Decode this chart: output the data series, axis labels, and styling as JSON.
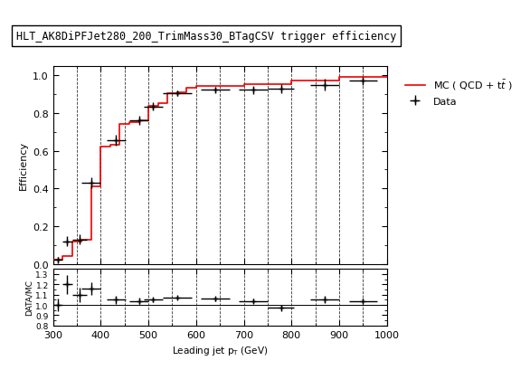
{
  "title": "HLT_AK8DiPFJet280_200_TrimMass30_BTagCSV trigger efficiency",
  "xlabel": "Leading jet p   (GeV)",
  "ylabel_main": "Efficiency",
  "ylabel_ratio": "DATA/MC",
  "xlim": [
    300,
    1000
  ],
  "ylim_main": [
    0,
    1.05
  ],
  "ylim_ratio": [
    0.8,
    1.35
  ],
  "mc_step_x": [
    300,
    320,
    340,
    360,
    380,
    400,
    420,
    440,
    460,
    480,
    500,
    520,
    540,
    560,
    580,
    600,
    650,
    700,
    750,
    800,
    850,
    900,
    950,
    1000
  ],
  "mc_step_y": [
    0.02,
    0.04,
    0.12,
    0.13,
    0.41,
    0.62,
    0.63,
    0.74,
    0.75,
    0.76,
    0.84,
    0.85,
    0.905,
    0.91,
    0.935,
    0.945,
    0.945,
    0.953,
    0.953,
    0.97,
    0.97,
    0.99,
    0.99
  ],
  "data_x": [
    310,
    330,
    355,
    380,
    432,
    480,
    510,
    560,
    640,
    720,
    778,
    870,
    950
  ],
  "data_y": [
    0.02,
    0.12,
    0.13,
    0.43,
    0.655,
    0.76,
    0.835,
    0.905,
    0.922,
    0.922,
    0.93,
    0.95,
    0.97
  ],
  "data_xerr": [
    10,
    10,
    15,
    20,
    20,
    20,
    20,
    30,
    30,
    30,
    28,
    30,
    30
  ],
  "data_yerr": [
    0.015,
    0.025,
    0.025,
    0.03,
    0.03,
    0.025,
    0.02,
    0.015,
    0.015,
    0.02,
    0.025,
    0.03,
    0.02
  ],
  "ratio_x": [
    310,
    330,
    355,
    380,
    432,
    480,
    510,
    560,
    640,
    720,
    778,
    870,
    950
  ],
  "ratio_y": [
    1.0,
    1.2,
    1.1,
    1.16,
    1.05,
    1.04,
    1.05,
    1.07,
    1.06,
    1.04,
    0.97,
    1.05,
    1.04
  ],
  "ratio_xerr": [
    10,
    10,
    15,
    20,
    20,
    20,
    20,
    30,
    30,
    30,
    28,
    30,
    30
  ],
  "ratio_yerr": [
    0.06,
    0.09,
    0.07,
    0.06,
    0.04,
    0.03,
    0.025,
    0.02,
    0.02,
    0.025,
    0.03,
    0.035,
    0.025
  ],
  "vline_x": [
    350,
    400,
    450,
    500,
    550,
    600,
    650,
    700,
    750,
    800,
    850,
    900,
    950
  ],
  "mc_color": "#ee0000",
  "data_color": "#000000",
  "yticks_main": [
    0.0,
    0.2,
    0.4,
    0.6,
    0.8,
    1.0
  ],
  "yticks_ratio": [
    0.8,
    0.9,
    1.0,
    1.1,
    1.2,
    1.3
  ],
  "xticks": [
    300,
    400,
    500,
    600,
    700,
    800,
    900,
    1000
  ]
}
